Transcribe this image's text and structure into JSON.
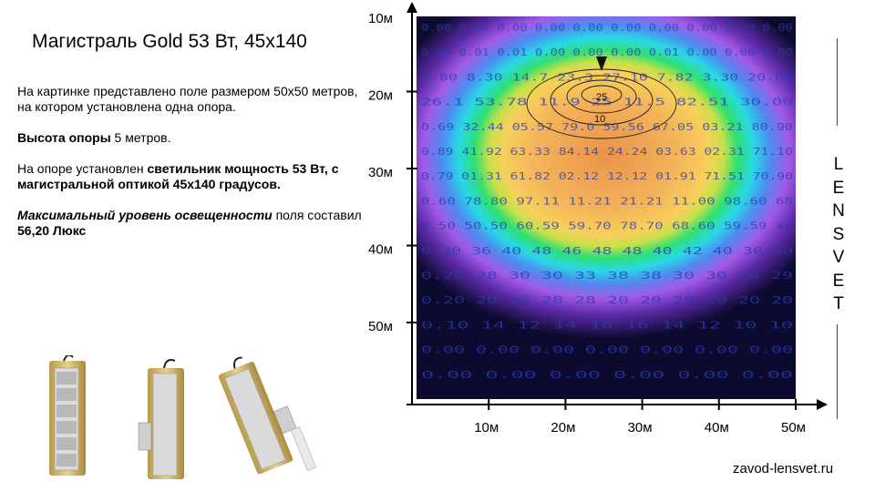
{
  "title": "Магистраль Gold 53 Вт, 45х140",
  "description": {
    "p1": "На картинке представлено поле размером 50х50 метров, на котором установлена одна опора.",
    "p2_bold": "Высота опоры",
    "p2_rest": " 5 метров.",
    "p3_start": "На опоре установлен ",
    "p3_bold": "светильник мощность 53 Вт, с магистральной оптикой 45х140 градусов.",
    "p4_italic_bold": "Максимальный уровень освещенности",
    "p4_mid": " поля составил ",
    "p4_bold": "56,20 Люкс"
  },
  "brand_vertical": [
    "L",
    "E",
    "N",
    "S",
    "V",
    "E",
    "T"
  ],
  "site": "zavod-lensvet.ru",
  "chart_data": {
    "type": "heatmap",
    "title": "",
    "x_ticks": [
      "10м",
      "20м",
      "30м",
      "40м",
      "50м"
    ],
    "y_ticks": [
      "10м",
      "20м",
      "30м",
      "40м",
      "50м"
    ],
    "max_lux": 56.2,
    "grid_rows": [
      "0.00 0.00 0.00 0.00 0.00 0.00 0.00 0.00 0.00 0.00",
      "0.00 0.01 0.01 0.00 0.00 0.00 0.01 0.00 0.00 0.00",
      "0.80 8.30 14.7 23.3 27.10 7.82 3.30 20.00",
      "26.1 53.78 11.9 25 11.5 82.51 30.00",
      "0.69 32.44 05.57 79.0 59.56 67.05 03.21 80.90",
      "0.89 41.92 63.33 84.14 24.24 03.63 02.31 71.10",
      "0.79 01.31 61.82 02.12 12.12 01.91 71.51 70.90",
      "0.60 78.80 97.11 11.21 21.21 11.00 98.60 68",
      "0.50 50.50 60.59 59.70 78.70 68.60 59.59 40",
      "0.30 36 40 48 46 48 48 40 42 40 30 30",
      "0.29 28 30 30 33 38 38 30 30 30 29",
      "0.20 20 20 28 28 20 20 28 20 20 20",
      "0.10 14 12 14 16 16 14 12 10 10",
      "0.00 0.00 0.00 0.00 0.00 0.00 0.00",
      "0.00 0.00 0.00 0.00 0.00 0.00"
    ],
    "contour_labels": [
      "25",
      "10"
    ]
  },
  "colors": {
    "axis": "#000000",
    "grid_text": "#2a3cb0"
  }
}
